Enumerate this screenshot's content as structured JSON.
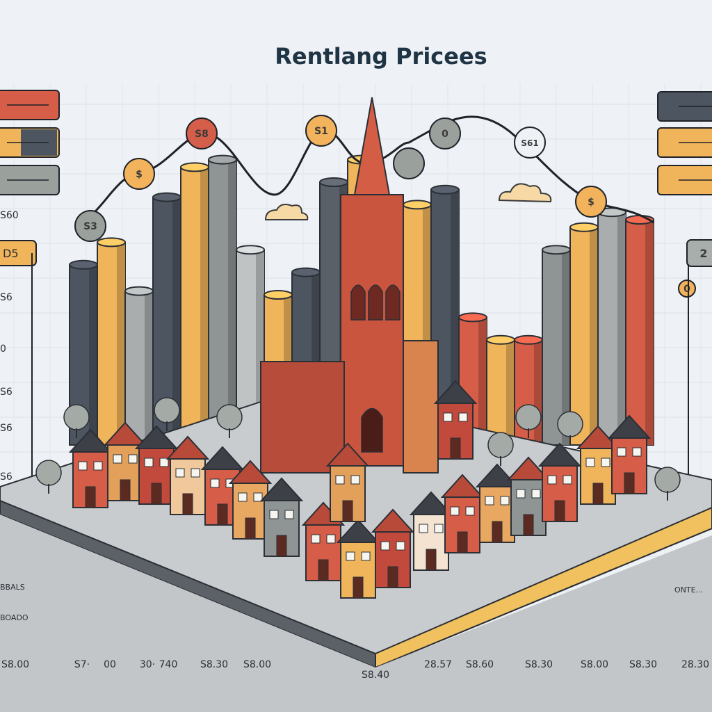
{
  "chart_data": {
    "type": "bar",
    "title": "Rentlang Pricees",
    "xlabel": "",
    "ylabel": "",
    "grid": true,
    "y_tick_labels": [
      "S6",
      "0",
      "S6",
      "S6",
      "S6",
      "0",
      "S6",
      "S6"
    ],
    "x_tick_labels": [
      "S8.00",
      "S7·",
      "00",
      "30·",
      "740",
      "S8.30",
      "S8.00",
      "S8.40",
      "28.57",
      "S8.60",
      "S8.30",
      "S8.00",
      "S8.30",
      "28.30"
    ],
    "side_labels": {
      "left": [
        "BBALS",
        "BOADO"
      ],
      "right": [
        "ONTE..."
      ]
    },
    "bars": {
      "unit": "relative height (0-100)",
      "values": [
        48,
        54,
        41,
        66,
        74,
        76,
        52,
        40,
        46,
        70,
        76,
        44,
        64,
        68,
        34,
        28,
        28,
        52,
        58,
        62,
        60
      ],
      "colors": [
        "#4d5560",
        "#f0b45a",
        "#a9adae",
        "#4d5560",
        "#f0b45a",
        "#8f9494",
        "#bfc3c4",
        "#f0b45a",
        "#4d5560",
        "#5a6068",
        "#f0b45a",
        "#d65d47",
        "#f0b45a",
        "#4d5560",
        "#d65d47",
        "#f0b45a",
        "#d65d47",
        "#8f9494",
        "#f0b45a",
        "#a9adae",
        "#d65d47"
      ]
    },
    "price_line": {
      "markers": [
        "S3",
        "$",
        "S8",
        "S1",
        "",
        "0",
        "S61",
        "$",
        "2",
        "0"
      ],
      "marker_fills": [
        "#9aa09c",
        "#f2b35c",
        "#d55e4a",
        "#f2b35c",
        "#9aa09c",
        "#9aa09c",
        "#eef1f5",
        "#f2b35c",
        "#9aa09c",
        "#f2b35c"
      ]
    },
    "left_legend_swatches": [
      "#d65d47",
      "#f0b45a",
      "#9aa09c",
      "#f0b45a"
    ],
    "right_legend_swatches": [
      "#4d5560",
      "#f0b45a",
      "#f0b45a",
      "#9aa09c"
    ],
    "left_legend_text": [
      "S60",
      "D5"
    ],
    "scene": "isometric model town with gothic cathedral"
  }
}
